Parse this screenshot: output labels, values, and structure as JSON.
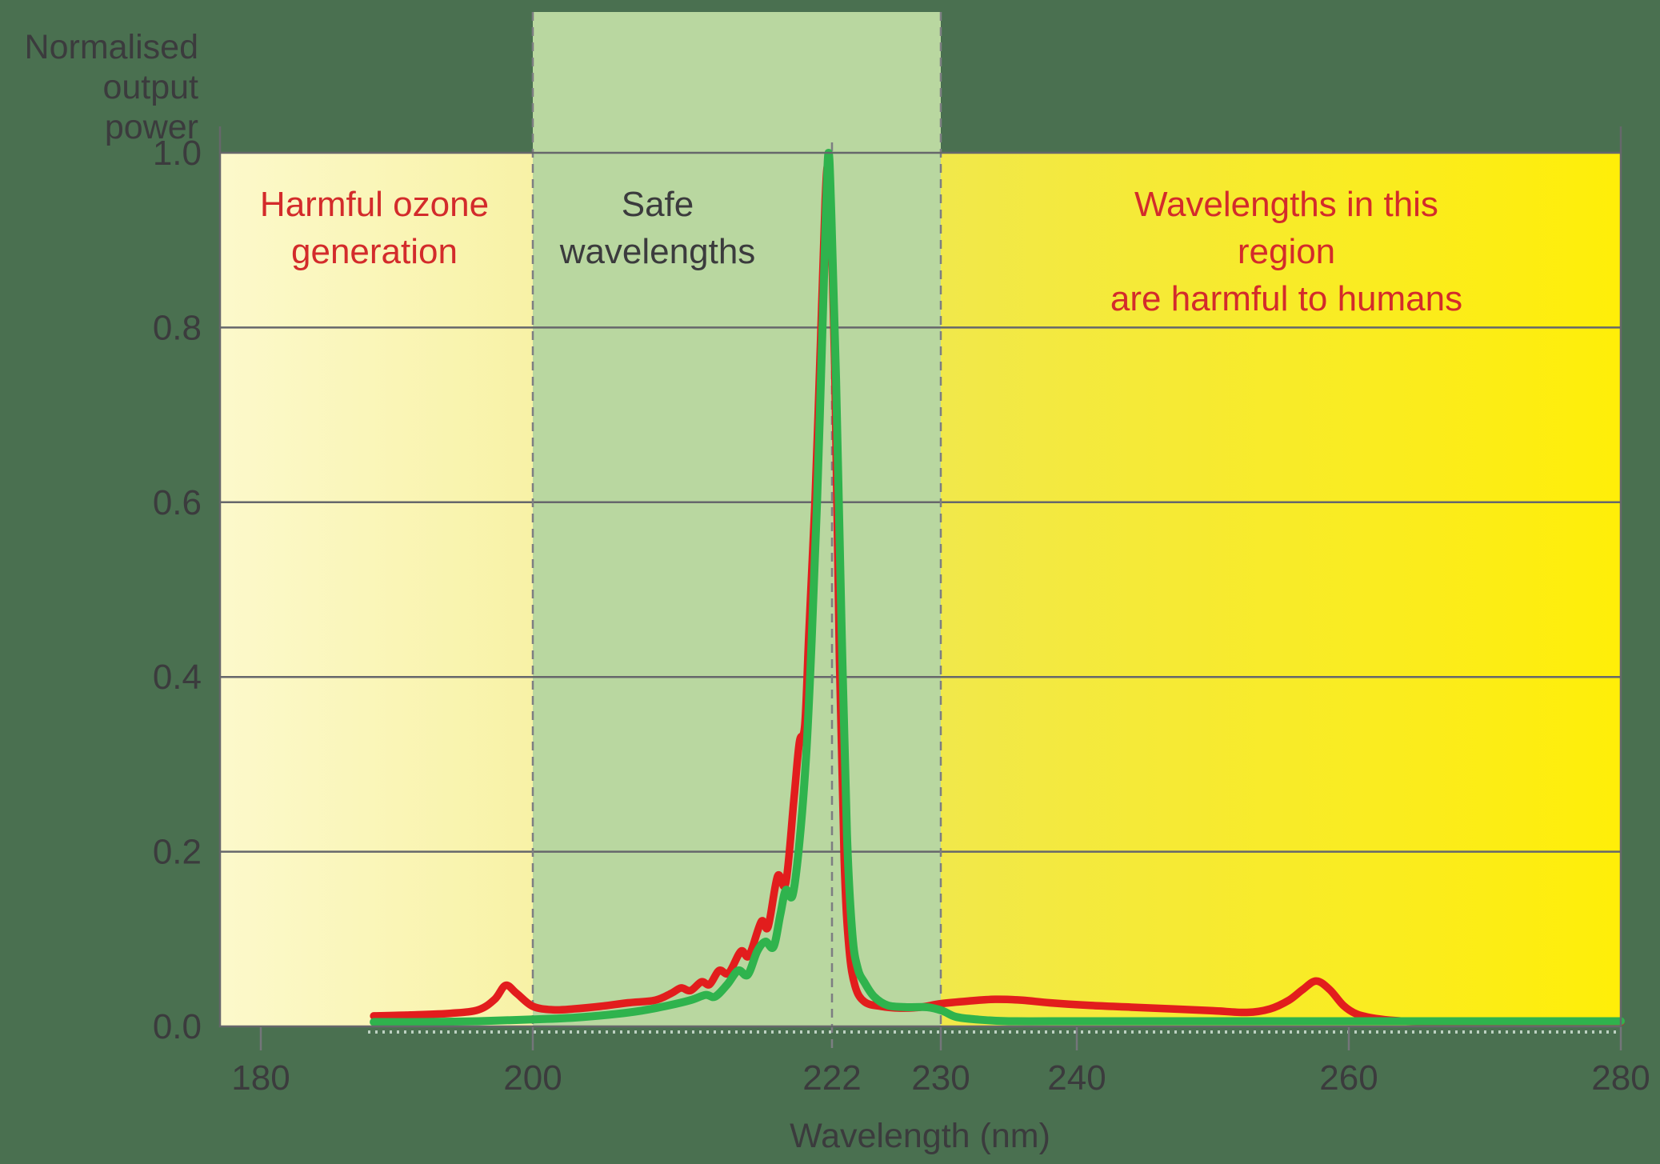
{
  "figure": {
    "background_color": "#4a7050",
    "text_color": "#3b3b3d",
    "warning_text_color": "#d32b2b",
    "grid_color": "#66676b",
    "dash_color": "#7d7e82",
    "y_axis_title_lines": [
      "Normalised",
      "output power"
    ],
    "x_axis_title": "Wavelength (nm)"
  },
  "chart_data": {
    "type": "line",
    "title": "",
    "xlabel": "Wavelength (nm)",
    "ylabel": "Normalised output power",
    "xlim_nm": [
      177,
      280
    ],
    "ylim": [
      0,
      1.0
    ],
    "grid": true,
    "legend": "none",
    "x_axis": {
      "label": "Wavelength (nm)",
      "ticks": [
        {
          "nm": 180,
          "label": "180"
        },
        {
          "nm": 200,
          "label": "200"
        },
        {
          "nm": 222,
          "label": "222"
        },
        {
          "nm": 230,
          "label": "230"
        },
        {
          "nm": 240,
          "label": "240"
        },
        {
          "nm": 260,
          "label": "260"
        },
        {
          "nm": 280,
          "label": "280"
        }
      ]
    },
    "y_axis": {
      "label_lines": [
        "Normalised",
        "output power"
      ],
      "ticks": [
        {
          "v": 0.0,
          "label": "0.0"
        },
        {
          "v": 0.2,
          "label": "0.2"
        },
        {
          "v": 0.4,
          "label": "0.4"
        },
        {
          "v": 0.6,
          "label": "0.6"
        },
        {
          "v": 0.8,
          "label": "0.8"
        },
        {
          "v": 1.0,
          "label": "1.0"
        }
      ]
    },
    "boundary_lines_nm": [
      200,
      222,
      230
    ],
    "regions": [
      {
        "id": "ozone",
        "from_nm": 177,
        "to_nm": 200,
        "fill_gradient": [
          "#fcf9cb",
          "#f8f2a6"
        ],
        "label_lines": [
          "Harmful ozone",
          "generation"
        ],
        "label_color": "#d32b2b",
        "extends_above_plot": false
      },
      {
        "id": "safe",
        "from_nm": 200,
        "to_nm": 230,
        "fill_gradient": [
          "#b9d7a0",
          "#b9d7a0"
        ],
        "label_lines": [
          "Safe",
          "wavelengths"
        ],
        "label_color": "#3b3b3d",
        "extends_above_plot": true
      },
      {
        "id": "harmful",
        "from_nm": 230,
        "to_nm": 280,
        "fill_gradient": [
          "#f1e84b",
          "#ffee08"
        ],
        "label_lines": [
          "Wavelengths in this region",
          "are harmful to humans"
        ],
        "label_color": "#d32b2b",
        "extends_above_plot": false
      }
    ],
    "series": [
      {
        "id": "red-curve",
        "color": "#e21d1d",
        "stroke_width": 9.5,
        "points": [
          [
            188.3,
            0.012
          ],
          [
            191,
            0.013
          ],
          [
            194,
            0.015
          ],
          [
            196,
            0.019
          ],
          [
            197.2,
            0.031
          ],
          [
            198.0,
            0.047
          ],
          [
            198.8,
            0.038
          ],
          [
            200,
            0.023
          ],
          [
            201.5,
            0.019
          ],
          [
            203,
            0.02
          ],
          [
            205,
            0.023
          ],
          [
            207,
            0.027
          ],
          [
            209,
            0.03
          ],
          [
            210.2,
            0.038
          ],
          [
            210.9,
            0.044
          ],
          [
            211.6,
            0.041
          ],
          [
            212.4,
            0.051
          ],
          [
            213.0,
            0.048
          ],
          [
            213.7,
            0.064
          ],
          [
            214.4,
            0.061
          ],
          [
            215.3,
            0.086
          ],
          [
            215.9,
            0.081
          ],
          [
            216.8,
            0.12
          ],
          [
            217.3,
            0.114
          ],
          [
            218.0,
            0.172
          ],
          [
            218.6,
            0.164
          ],
          [
            219.2,
            0.26
          ],
          [
            219.6,
            0.325
          ],
          [
            220.0,
            0.345
          ],
          [
            220.3,
            0.45
          ],
          [
            220.75,
            0.6
          ],
          [
            221.15,
            0.78
          ],
          [
            221.5,
            0.945
          ],
          [
            221.7,
            0.985
          ],
          [
            221.9,
            0.94
          ],
          [
            222.2,
            0.76
          ],
          [
            222.55,
            0.42
          ],
          [
            222.9,
            0.19
          ],
          [
            223.25,
            0.09
          ],
          [
            223.7,
            0.046
          ],
          [
            224.4,
            0.028
          ],
          [
            225.6,
            0.023
          ],
          [
            227.0,
            0.021
          ],
          [
            228.5,
            0.022
          ],
          [
            230.0,
            0.026
          ],
          [
            232.0,
            0.029
          ],
          [
            234.0,
            0.031
          ],
          [
            236.0,
            0.03
          ],
          [
            238.0,
            0.027
          ],
          [
            241.0,
            0.024
          ],
          [
            244.0,
            0.022
          ],
          [
            247.0,
            0.02
          ],
          [
            250.0,
            0.018
          ],
          [
            252.5,
            0.016
          ],
          [
            254.2,
            0.02
          ],
          [
            255.6,
            0.03
          ],
          [
            256.6,
            0.042
          ],
          [
            257.6,
            0.052
          ],
          [
            258.6,
            0.042
          ],
          [
            259.6,
            0.024
          ],
          [
            260.6,
            0.014
          ],
          [
            262.0,
            0.009
          ],
          [
            264.0,
            0.006
          ],
          [
            266.0,
            0.005
          ],
          [
            270.0,
            0.005
          ],
          [
            275.0,
            0.005
          ],
          [
            280.0,
            0.005
          ]
        ]
      },
      {
        "id": "green-curve",
        "color": "#2fb34d",
        "stroke_width": 10,
        "points": [
          [
            188.3,
            0.005
          ],
          [
            192,
            0.005
          ],
          [
            196,
            0.006
          ],
          [
            200,
            0.008
          ],
          [
            203,
            0.01
          ],
          [
            206,
            0.014
          ],
          [
            208,
            0.018
          ],
          [
            210,
            0.024
          ],
          [
            211.6,
            0.03
          ],
          [
            212.7,
            0.036
          ],
          [
            213.4,
            0.034
          ],
          [
            214.3,
            0.048
          ],
          [
            215.1,
            0.064
          ],
          [
            215.8,
            0.059
          ],
          [
            216.5,
            0.086
          ],
          [
            217.1,
            0.097
          ],
          [
            217.7,
            0.091
          ],
          [
            218.2,
            0.128
          ],
          [
            218.6,
            0.156
          ],
          [
            219.1,
            0.15
          ],
          [
            219.6,
            0.21
          ],
          [
            220.1,
            0.31
          ],
          [
            220.5,
            0.44
          ],
          [
            220.9,
            0.6
          ],
          [
            221.3,
            0.8
          ],
          [
            221.55,
            0.93
          ],
          [
            221.75,
            1.0
          ],
          [
            221.95,
            0.93
          ],
          [
            222.3,
            0.74
          ],
          [
            222.7,
            0.46
          ],
          [
            223.1,
            0.22
          ],
          [
            223.5,
            0.105
          ],
          [
            223.9,
            0.066
          ],
          [
            224.4,
            0.05
          ],
          [
            225.1,
            0.034
          ],
          [
            226.1,
            0.024
          ],
          [
            227.5,
            0.022
          ],
          [
            229.0,
            0.022
          ],
          [
            230.1,
            0.018
          ],
          [
            231.1,
            0.011
          ],
          [
            232.6,
            0.008
          ],
          [
            235,
            0.006
          ],
          [
            240,
            0.006
          ],
          [
            246,
            0.006
          ],
          [
            252,
            0.006
          ],
          [
            258,
            0.006
          ],
          [
            264,
            0.006
          ],
          [
            272,
            0.006
          ],
          [
            280,
            0.006
          ]
        ]
      }
    ]
  }
}
